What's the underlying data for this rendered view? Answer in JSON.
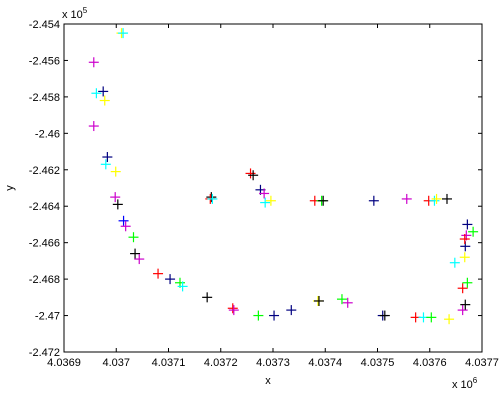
{
  "chart_data": {
    "type": "scatter",
    "title": "",
    "xlabel": "x",
    "ylabel": "y",
    "x_exponent_label": "x 10",
    "x_exponent_power": "6",
    "y_exponent_label": "x 10",
    "y_exponent_power": "5",
    "xlim": [
      4.0369,
      4.0377
    ],
    "ylim": [
      -2.472,
      -2.454
    ],
    "x_ticks": [
      4.0369,
      4.037,
      4.0371,
      4.0372,
      4.0373,
      4.0374,
      4.0375,
      4.0376,
      4.0377
    ],
    "x_tick_labels": [
      "4.0369",
      "4.037",
      "4.0371",
      "4.0372",
      "4.0373",
      "4.0374",
      "4.0375",
      "4.0376",
      "4.0377"
    ],
    "y_ticks": [
      -2.472,
      -2.47,
      -2.468,
      -2.466,
      -2.464,
      -2.462,
      -2.46,
      -2.458,
      -2.456,
      -2.454
    ],
    "y_tick_labels": [
      "-2.472",
      "-2.47",
      "-2.468",
      "-2.466",
      "-2.464",
      "-2.462",
      "-2.46",
      "-2.458",
      "-2.456",
      "-2.454"
    ],
    "grid": false,
    "marker": "+",
    "points": [
      {
        "x": 4.03701,
        "y": -2.4545,
        "color": "#ffff00"
      },
      {
        "x": 4.037013,
        "y": -2.4545,
        "color": "#00ffff"
      },
      {
        "x": 4.036957,
        "y": -2.4561,
        "color": "#cc00cc"
      },
      {
        "x": 4.036962,
        "y": -2.4578,
        "color": "#00ffff"
      },
      {
        "x": 4.036975,
        "y": -2.4577,
        "color": "#000080"
      },
      {
        "x": 4.036978,
        "y": -2.4582,
        "color": "#ffff00"
      },
      {
        "x": 4.036957,
        "y": -2.4596,
        "color": "#cc00cc"
      },
      {
        "x": 4.036983,
        "y": -2.4613,
        "color": "#000080"
      },
      {
        "x": 4.03698,
        "y": -2.4617,
        "color": "#00ffff"
      },
      {
        "x": 4.036999,
        "y": -2.4621,
        "color": "#ffff00"
      },
      {
        "x": 4.036998,
        "y": -2.4635,
        "color": "#cc00cc"
      },
      {
        "x": 4.037003,
        "y": -2.4639,
        "color": "#000000"
      },
      {
        "x": 4.037014,
        "y": -2.4648,
        "color": "#0000ff"
      },
      {
        "x": 4.037018,
        "y": -2.4651,
        "color": "#cc00cc"
      },
      {
        "x": 4.037033,
        "y": -2.4657,
        "color": "#00ff00"
      },
      {
        "x": 4.037036,
        "y": -2.4666,
        "color": "#000000"
      },
      {
        "x": 4.037044,
        "y": -2.4669,
        "color": "#cc00cc"
      },
      {
        "x": 4.03708,
        "y": -2.4677,
        "color": "#ff0000"
      },
      {
        "x": 4.037103,
        "y": -2.468,
        "color": "#000080"
      },
      {
        "x": 4.037122,
        "y": -2.4682,
        "color": "#00ff00"
      },
      {
        "x": 4.037127,
        "y": -2.4684,
        "color": "#00ffff"
      },
      {
        "x": 4.037174,
        "y": -2.469,
        "color": "#000000"
      },
      {
        "x": 4.037182,
        "y": -2.4635,
        "color": "#000000"
      },
      {
        "x": 4.03718,
        "y": -2.4636,
        "color": "#ff0000"
      },
      {
        "x": 4.037184,
        "y": -2.4636,
        "color": "#00ffff"
      },
      {
        "x": 4.037223,
        "y": -2.4696,
        "color": "#ff0000"
      },
      {
        "x": 4.037225,
        "y": -2.4697,
        "color": "#cc00cc"
      },
      {
        "x": 4.037257,
        "y": -2.4622,
        "color": "#ff0000"
      },
      {
        "x": 4.037262,
        "y": -2.4623,
        "color": "#000000"
      },
      {
        "x": 4.037272,
        "y": -2.47,
        "color": "#00ff00"
      },
      {
        "x": 4.037276,
        "y": -2.4631,
        "color": "#000080"
      },
      {
        "x": 4.037283,
        "y": -2.4633,
        "color": "#cc00cc"
      },
      {
        "x": 4.037285,
        "y": -2.4638,
        "color": "#00ffff"
      },
      {
        "x": 4.037296,
        "y": -2.4637,
        "color": "#ffff00"
      },
      {
        "x": 4.037302,
        "y": -2.47,
        "color": "#000080"
      },
      {
        "x": 4.037335,
        "y": -2.4697,
        "color": "#000080"
      },
      {
        "x": 4.03738,
        "y": -2.4637,
        "color": "#ff0000"
      },
      {
        "x": 4.037386,
        "y": -2.4692,
        "color": "#ffff00"
      },
      {
        "x": 4.037388,
        "y": -2.4692,
        "color": "#000000"
      },
      {
        "x": 4.037393,
        "y": -2.4637,
        "color": "#00ff00"
      },
      {
        "x": 4.037396,
        "y": -2.4637,
        "color": "#000000"
      },
      {
        "x": 4.037432,
        "y": -2.4691,
        "color": "#00ff00"
      },
      {
        "x": 4.037443,
        "y": -2.4693,
        "color": "#cc00cc"
      },
      {
        "x": 4.037493,
        "y": -2.4637,
        "color": "#000080"
      },
      {
        "x": 4.03751,
        "y": -2.47,
        "color": "#000080"
      },
      {
        "x": 4.037514,
        "y": -2.47,
        "color": "#000000"
      },
      {
        "x": 4.037556,
        "y": -2.4636,
        "color": "#cc00cc"
      },
      {
        "x": 4.037573,
        "y": -2.4701,
        "color": "#ff0000"
      },
      {
        "x": 4.037588,
        "y": -2.4701,
        "color": "#00ffff"
      },
      {
        "x": 4.037598,
        "y": -2.4637,
        "color": "#ff0000"
      },
      {
        "x": 4.037603,
        "y": -2.4701,
        "color": "#00ff00"
      },
      {
        "x": 4.037609,
        "y": -2.4637,
        "color": "#00ffff"
      },
      {
        "x": 4.037613,
        "y": -2.4636,
        "color": "#ffff00"
      },
      {
        "x": 4.037633,
        "y": -2.4636,
        "color": "#000000"
      },
      {
        "x": 4.037637,
        "y": -2.4702,
        "color": "#ffff00"
      },
      {
        "x": 4.037648,
        "y": -2.4671,
        "color": "#00ffff"
      },
      {
        "x": 4.037663,
        "y": -2.4697,
        "color": "#cc00cc"
      },
      {
        "x": 4.037668,
        "y": -2.4694,
        "color": "#000000"
      },
      {
        "x": 4.037663,
        "y": -2.4685,
        "color": "#ff0000"
      },
      {
        "x": 4.037672,
        "y": -2.4682,
        "color": "#00ff00"
      },
      {
        "x": 4.037667,
        "y": -2.4668,
        "color": "#ffff00"
      },
      {
        "x": 4.037668,
        "y": -2.4662,
        "color": "#000080"
      },
      {
        "x": 4.03767,
        "y": -2.4656,
        "color": "#cc00cc"
      },
      {
        "x": 4.037672,
        "y": -2.465,
        "color": "#000080"
      },
      {
        "x": 4.037683,
        "y": -2.4654,
        "color": "#00ff00"
      },
      {
        "x": 4.037667,
        "y": -2.4658,
        "color": "#ff0000"
      }
    ]
  }
}
